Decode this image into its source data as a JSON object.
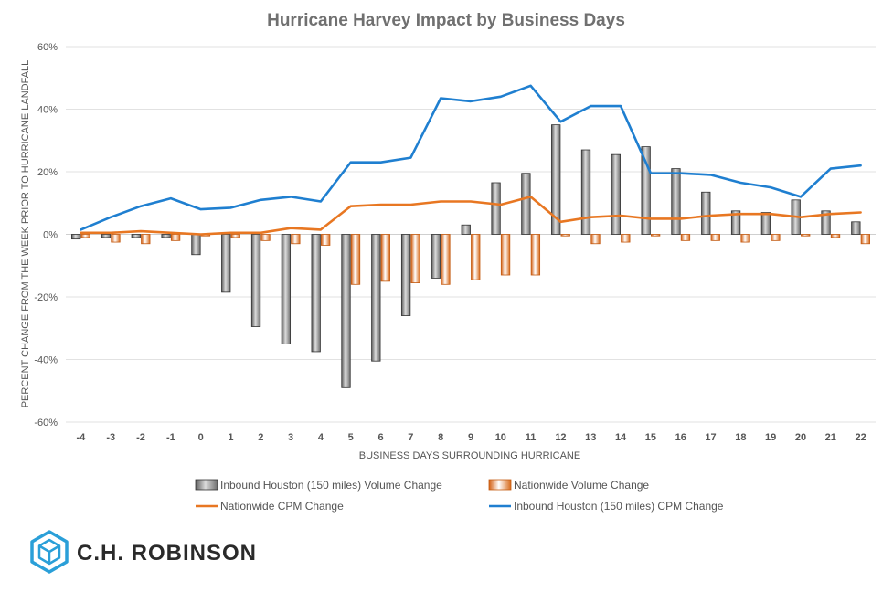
{
  "chart_data": {
    "type": "bar",
    "title": "Hurricane Harvey Impact by Business Days",
    "xlabel": "BUSINESS DAYS SURROUNDING HURRICANE",
    "ylabel": "PERCENT CHANGE FROM THE WEEK PRIOR TO HURRICANE LANDFALL",
    "ylim": [
      -60,
      60
    ],
    "yticks": [
      60,
      40,
      20,
      0,
      -20,
      -40,
      -60
    ],
    "ytick_labels": [
      "60%",
      "40%",
      "20%",
      "0%",
      "-20%",
      "-40%",
      "-60%"
    ],
    "categories": [
      "-4",
      "-3",
      "-2",
      "-1",
      "0",
      "1",
      "2",
      "3",
      "4",
      "5",
      "6",
      "7",
      "8",
      "9",
      "10",
      "11",
      "12",
      "13",
      "14",
      "15",
      "16",
      "17",
      "18",
      "19",
      "20",
      "21",
      "22"
    ],
    "grid": true,
    "legend_position": "bottom",
    "series": [
      {
        "name": "Inbound Houston (150 miles) Volume Change",
        "kind": "bar",
        "color": "#8c8c8c",
        "values": [
          -1.5,
          -1,
          -1,
          -1,
          -6.5,
          -18.5,
          -29.5,
          -35,
          -37.5,
          -49,
          -40.5,
          -26,
          -14,
          3,
          16.5,
          19.5,
          35,
          27,
          25.5,
          28,
          21,
          13.5,
          7.5,
          7,
          11,
          7.5,
          4
        ]
      },
      {
        "name": "Nationwide Volume Change",
        "kind": "bar",
        "color": "#e87722",
        "values": [
          -1,
          -2.5,
          -3,
          -2,
          -0.5,
          -1,
          -2,
          -3,
          -3.5,
          -16,
          -15,
          -15.5,
          -16,
          -14.5,
          -13,
          -13,
          -0.5,
          -3,
          -2.5,
          -0.5,
          -2,
          -2,
          -2.5,
          -2,
          -0.5,
          -1,
          -3
        ]
      },
      {
        "name": "Nationwide CPM Change",
        "kind": "line",
        "color": "#e87722",
        "values": [
          0.5,
          0.5,
          1,
          0.5,
          0,
          0.5,
          0.5,
          2,
          1.5,
          9,
          9.5,
          9.5,
          10.5,
          10.5,
          9.5,
          12,
          4,
          5.5,
          6,
          5,
          5,
          6,
          6.5,
          6.5,
          5.5,
          6.5,
          7
        ]
      },
      {
        "name": "Inbound Houston (150 miles) CPM Change",
        "kind": "line",
        "color": "#1f7fd0",
        "values": [
          1.5,
          5.5,
          9,
          11.5,
          8,
          8.5,
          11,
          12,
          10.5,
          23,
          23,
          24.5,
          43.5,
          42.5,
          44,
          47.5,
          36,
          41,
          41,
          19.5,
          19.5,
          19,
          16.5,
          15,
          12,
          21,
          22
        ]
      }
    ]
  },
  "brand": {
    "name": "C.H. ROBINSON",
    "logo_icon": "hexagon-cube-icon",
    "logo_color": "#2a9fd8"
  }
}
